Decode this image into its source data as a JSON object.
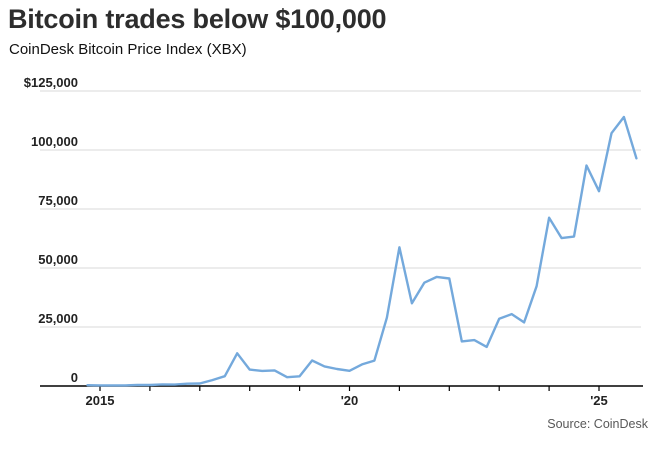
{
  "chart_data": {
    "type": "line",
    "title": "Bitcoin trades below $100,000",
    "subtitle": "CoinDesk Bitcoin Price Index (XBX)",
    "source": "Source: CoinDesk",
    "series_name": "CoinDesk Bitcoin Price Index (XBX)",
    "x": [
      2014.75,
      2015.0,
      2015.25,
      2015.5,
      2015.75,
      2016.0,
      2016.25,
      2016.5,
      2016.75,
      2017.0,
      2017.25,
      2017.5,
      2017.75,
      2018.0,
      2018.25,
      2018.5,
      2018.75,
      2019.0,
      2019.25,
      2019.5,
      2019.75,
      2020.0,
      2020.25,
      2020.5,
      2020.75,
      2021.0,
      2021.25,
      2021.5,
      2021.75,
      2022.0,
      2022.25,
      2022.5,
      2022.75,
      2023.0,
      2023.25,
      2023.5,
      2023.75,
      2024.0,
      2024.25,
      2024.5,
      2024.75,
      2025.0,
      2025.25,
      2025.5,
      2025.75
    ],
    "values": [
      318,
      244,
      263,
      236,
      430,
      416,
      673,
      609,
      963,
      1080,
      2480,
      4170,
      13860,
      6940,
      6400,
      6600,
      3740,
      4100,
      10800,
      8300,
      7190,
      6440,
      9140,
      10780,
      29000,
      58760,
      35040,
      43790,
      46220,
      45540,
      18900,
      19430,
      16550,
      28480,
      30480,
      26970,
      42270,
      71330,
      62680,
      63300,
      93430,
      82550,
      107100,
      114000,
      96500
    ],
    "xlabel": "",
    "ylabel": "",
    "xlim": [
      2014.6,
      2025.9
    ],
    "ylim": [
      0,
      125000
    ],
    "grid": true,
    "legend_position": "none",
    "y_ticks": [
      {
        "value": 0,
        "label": "0"
      },
      {
        "value": 25000,
        "label": "25,000"
      },
      {
        "value": 50000,
        "label": "50,000"
      },
      {
        "value": 75000,
        "label": "75,000"
      },
      {
        "value": 100000,
        "label": "100,000"
      },
      {
        "value": 125000,
        "label": "$125,000"
      }
    ],
    "x_ticks": [
      {
        "value": 2015,
        "label": "2015"
      },
      {
        "value": 2016,
        "label": ""
      },
      {
        "value": 2017,
        "label": ""
      },
      {
        "value": 2018,
        "label": ""
      },
      {
        "value": 2019,
        "label": ""
      },
      {
        "value": 2020,
        "label": "'20"
      },
      {
        "value": 2021,
        "label": ""
      },
      {
        "value": 2022,
        "label": ""
      },
      {
        "value": 2023,
        "label": ""
      },
      {
        "value": 2024,
        "label": ""
      },
      {
        "value": 2025,
        "label": "'25"
      }
    ],
    "colors": {
      "line": "#74a9dc",
      "grid": "#d9d9d9",
      "axis": "#000000",
      "title_text": "#2d2d2d",
      "tick_text": "#222222",
      "source_text": "#585858"
    }
  }
}
